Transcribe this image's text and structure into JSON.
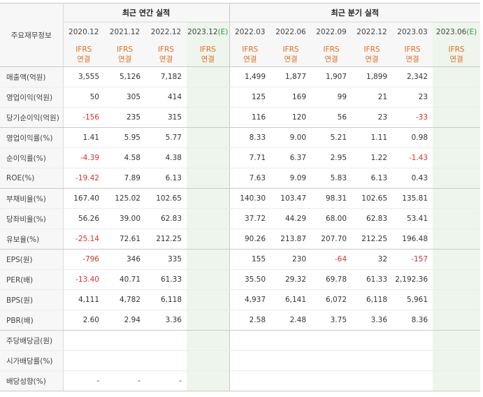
{
  "header": {
    "corner_label": "주요재무정보",
    "annual_group": "최근 연간 실적",
    "quarter_group": "최근 분기 실적",
    "annual_periods": [
      {
        "period": "2020.12",
        "est": ""
      },
      {
        "period": "2021.12",
        "est": ""
      },
      {
        "period": "2022.12",
        "est": ""
      },
      {
        "period": "2023.12",
        "est": "(E)"
      }
    ],
    "quarter_periods": [
      {
        "period": "2022.03",
        "est": ""
      },
      {
        "period": "2022.06",
        "est": ""
      },
      {
        "period": "2022.09",
        "est": ""
      },
      {
        "period": "2022.12",
        "est": ""
      },
      {
        "period": "2023.03",
        "est": ""
      },
      {
        "period": "2023.06",
        "est": "(E)"
      }
    ],
    "ifrs_top": "IFRS",
    "ifrs_bottom": "연결"
  },
  "rows": [
    {
      "label": "매출액(억원)",
      "annual": [
        "3,555",
        "5,126",
        "7,182",
        ""
      ],
      "quarter": [
        "1,499",
        "1,877",
        "1,907",
        "1,899",
        "2,342",
        ""
      ]
    },
    {
      "label": "영업이익(억원)",
      "annual": [
        "50",
        "305",
        "414",
        ""
      ],
      "quarter": [
        "125",
        "169",
        "99",
        "21",
        "23",
        ""
      ]
    },
    {
      "label": "당기순이익(억원)",
      "annual": [
        "-156",
        "235",
        "315",
        ""
      ],
      "quarter": [
        "116",
        "120",
        "56",
        "23",
        "-33",
        ""
      ]
    },
    {
      "label": "영업이익률(%)",
      "annual": [
        "1.41",
        "5.95",
        "5.77",
        ""
      ],
      "quarter": [
        "8.33",
        "9.00",
        "5.21",
        "1.11",
        "0.98",
        ""
      ]
    },
    {
      "label": "순이익률(%)",
      "annual": [
        "-4.39",
        "4.58",
        "4.38",
        ""
      ],
      "quarter": [
        "7.71",
        "6.37",
        "2.95",
        "1.22",
        "-1.43",
        ""
      ]
    },
    {
      "label": "ROE(%)",
      "annual": [
        "-19.42",
        "7.89",
        "6.13",
        ""
      ],
      "quarter": [
        "7.63",
        "9.09",
        "5.83",
        "6.13",
        "0.43",
        ""
      ]
    },
    {
      "label": "부채비율(%)",
      "annual": [
        "167.40",
        "125.02",
        "102.65",
        ""
      ],
      "quarter": [
        "140.30",
        "103.47",
        "98.31",
        "102.65",
        "135.81",
        ""
      ]
    },
    {
      "label": "당좌비율(%)",
      "annual": [
        "56.26",
        "39.00",
        "62.83",
        ""
      ],
      "quarter": [
        "37.72",
        "44.29",
        "68.00",
        "62.83",
        "53.41",
        ""
      ]
    },
    {
      "label": "유보율(%)",
      "annual": [
        "-25.14",
        "72.61",
        "212.25",
        ""
      ],
      "quarter": [
        "90.26",
        "213.87",
        "207.70",
        "212.25",
        "196.48",
        ""
      ]
    },
    {
      "label": "EPS(원)",
      "annual": [
        "-796",
        "346",
        "335",
        ""
      ],
      "quarter": [
        "155",
        "230",
        "-64",
        "32",
        "-157",
        ""
      ]
    },
    {
      "label": "PER(배)",
      "annual": [
        "-13.40",
        "40.71",
        "61.33",
        ""
      ],
      "quarter": [
        "35.50",
        "29.32",
        "69.78",
        "61.33",
        "2,192.36",
        ""
      ]
    },
    {
      "label": "BPS(원)",
      "annual": [
        "4,111",
        "4,782",
        "6,118",
        ""
      ],
      "quarter": [
        "4,937",
        "6,141",
        "6,072",
        "6,118",
        "5,961",
        ""
      ]
    },
    {
      "label": "PBR(배)",
      "annual": [
        "2.60",
        "2.94",
        "3.36",
        ""
      ],
      "quarter": [
        "2.58",
        "2.48",
        "3.75",
        "3.36",
        "8.36",
        ""
      ]
    },
    {
      "label": "주당배당금(원)",
      "annual": [
        "",
        "",
        "",
        ""
      ],
      "quarter": [
        "",
        "",
        "",
        "",
        "",
        ""
      ]
    },
    {
      "label": "시가배당률(%)",
      "annual": [
        "",
        "",
        "",
        ""
      ],
      "quarter": [
        "",
        "",
        "",
        "",
        "",
        ""
      ]
    },
    {
      "label": "배당성향(%)",
      "annual": [
        "-",
        "-",
        "-",
        ""
      ],
      "quarter": [
        "",
        "",
        "",
        "",
        "",
        ""
      ]
    }
  ],
  "colors": {
    "negative": "#d9302c",
    "ifrs": "#e06d1d",
    "estimate_bg": "#eef5ec",
    "estimate_mark": "#2e9b45"
  }
}
